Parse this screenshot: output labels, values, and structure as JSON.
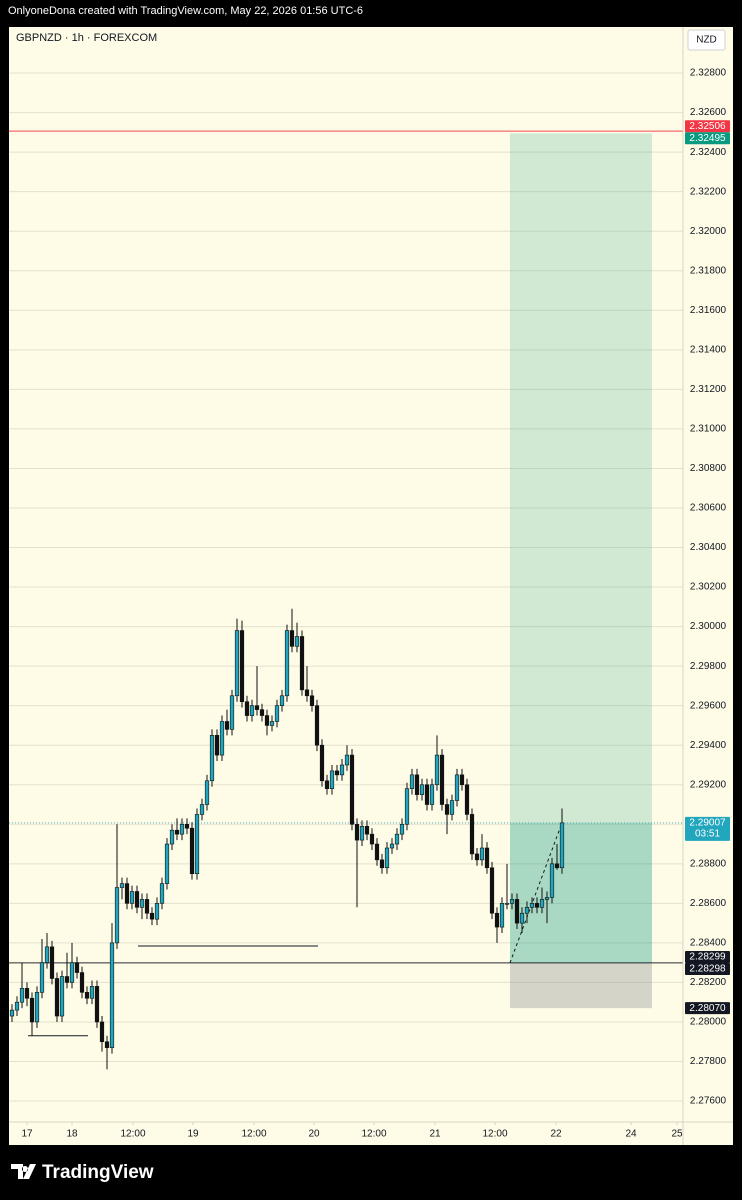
{
  "header": "OnlyoneDona created with TradingView.com, May 22, 2026 01:56 UTC-6",
  "footer": "TradingView",
  "chart_data": {
    "type": "candlestick",
    "title": "GBPNZD · 1h · FOREXCOM",
    "currency": "NZD",
    "up_color": "#22a6bd",
    "down_color": "#111111",
    "grid": true,
    "ylim": [
      2.27494,
      2.33033
    ],
    "xlim": [
      -0.6,
      134.2
    ],
    "yticks": [
      {
        "value": 2.276,
        "label": "2.27600"
      },
      {
        "value": 2.278,
        "label": "2.27800"
      },
      {
        "value": 2.28,
        "label": "2.28000"
      },
      {
        "value": 2.282,
        "label": "2.28200"
      },
      {
        "value": 2.284,
        "label": "2.28400"
      },
      {
        "value": 2.286,
        "label": "2.28600"
      },
      {
        "value": 2.288,
        "label": "2.28800"
      },
      {
        "value": 2.29,
        "label": "2.29000"
      },
      {
        "value": 2.292,
        "label": "2.29200"
      },
      {
        "value": 2.294,
        "label": "2.29400"
      },
      {
        "value": 2.296,
        "label": "2.29600"
      },
      {
        "value": 2.298,
        "label": "2.29800"
      },
      {
        "value": 2.3,
        "label": "2.30000"
      },
      {
        "value": 2.302,
        "label": "2.30200"
      },
      {
        "value": 2.304,
        "label": "2.30400"
      },
      {
        "value": 2.306,
        "label": "2.30600"
      },
      {
        "value": 2.308,
        "label": "2.30800"
      },
      {
        "value": 2.31,
        "label": "2.31000"
      },
      {
        "value": 2.312,
        "label": "2.31200"
      },
      {
        "value": 2.314,
        "label": "2.31400"
      },
      {
        "value": 2.316,
        "label": "2.31600"
      },
      {
        "value": 2.318,
        "label": "2.31800"
      },
      {
        "value": 2.32,
        "label": "2.32000"
      },
      {
        "value": 2.322,
        "label": "2.32200"
      },
      {
        "value": 2.324,
        "label": "2.32400"
      },
      {
        "value": 2.326,
        "label": "2.32600"
      },
      {
        "value": 2.328,
        "label": "2.32800"
      }
    ],
    "xticks": [
      {
        "value": 3,
        "label": "17"
      },
      {
        "value": 12,
        "label": "18"
      },
      {
        "value": 24.2,
        "label": "12:00"
      },
      {
        "value": 36.2,
        "label": "19"
      },
      {
        "value": 48.4,
        "label": "12:00"
      },
      {
        "value": 60.4,
        "label": "20"
      },
      {
        "value": 72.4,
        "label": "12:00"
      },
      {
        "value": 84.6,
        "label": "21"
      },
      {
        "value": 96.6,
        "label": "12:00"
      },
      {
        "value": 108.8,
        "label": "22"
      },
      {
        "value": 123.8,
        "label": "24"
      },
      {
        "value": 133,
        "label": "25"
      }
    ],
    "candles": [
      [
        2.2803,
        2.2809,
        2.28,
        2.2806
      ],
      [
        2.2806,
        2.2813,
        2.2803,
        2.281
      ],
      [
        2.281,
        2.283,
        2.2807,
        2.2817
      ],
      [
        2.2817,
        2.282,
        2.2808,
        2.2812
      ],
      [
        2.2812,
        2.2815,
        2.2793,
        2.28
      ],
      [
        2.28,
        2.2818,
        2.2797,
        2.2815
      ],
      [
        2.2815,
        2.2842,
        2.2812,
        2.283
      ],
      [
        2.283,
        2.2845,
        2.2827,
        2.2838
      ],
      [
        2.2838,
        2.2841,
        2.2819,
        2.2822
      ],
      [
        2.2822,
        2.2825,
        2.28,
        2.2803
      ],
      [
        2.2803,
        2.2826,
        2.28,
        2.2823
      ],
      [
        2.2823,
        2.2835,
        2.2817,
        2.282
      ],
      [
        2.282,
        2.284,
        2.2817,
        2.283
      ],
      [
        2.283,
        2.2833,
        2.2822,
        2.2825
      ],
      [
        2.2825,
        2.2828,
        2.2812,
        2.2815
      ],
      [
        2.2815,
        2.2818,
        2.2809,
        2.2812
      ],
      [
        2.2812,
        2.2821,
        2.2809,
        2.2818
      ],
      [
        2.2818,
        2.2821,
        2.2797,
        2.28
      ],
      [
        2.28,
        2.2803,
        2.2785,
        2.279
      ],
      [
        2.279,
        2.2793,
        2.2776,
        2.2787
      ],
      [
        2.2787,
        2.285,
        2.2784,
        2.284
      ],
      [
        2.284,
        2.29,
        2.2837,
        2.2868
      ],
      [
        2.2868,
        2.2873,
        2.2862,
        2.287
      ],
      [
        2.287,
        2.2873,
        2.2857,
        2.286
      ],
      [
        2.286,
        2.2869,
        2.2857,
        2.2866
      ],
      [
        2.2866,
        2.2869,
        2.2855,
        2.2858
      ],
      [
        2.2858,
        2.2865,
        2.2852,
        2.2862
      ],
      [
        2.2862,
        2.2865,
        2.2852,
        2.2855
      ],
      [
        2.2855,
        2.2858,
        2.2849,
        2.2852
      ],
      [
        2.2852,
        2.2863,
        2.2849,
        2.286
      ],
      [
        2.286,
        2.2873,
        2.2857,
        2.287
      ],
      [
        2.287,
        2.2893,
        2.2867,
        2.289
      ],
      [
        2.289,
        2.29,
        2.2887,
        2.2897
      ],
      [
        2.2897,
        2.2903,
        2.2892,
        2.2895
      ],
      [
        2.2895,
        2.2903,
        2.2892,
        2.29
      ],
      [
        2.29,
        2.2903,
        2.2895,
        2.2898
      ],
      [
        2.2898,
        2.2901,
        2.2872,
        2.2875
      ],
      [
        2.2875,
        2.2908,
        2.2872,
        2.2905
      ],
      [
        2.2905,
        2.2913,
        2.2902,
        2.291
      ],
      [
        2.291,
        2.2925,
        2.2907,
        2.2922
      ],
      [
        2.2922,
        2.2948,
        2.2919,
        2.2945
      ],
      [
        2.2945,
        2.2948,
        2.2932,
        2.2935
      ],
      [
        2.2935,
        2.2955,
        2.2932,
        2.2952
      ],
      [
        2.2952,
        2.2958,
        2.2945,
        2.2948
      ],
      [
        2.2948,
        2.2968,
        2.2945,
        2.2965
      ],
      [
        2.2965,
        2.3004,
        2.2962,
        2.2998
      ],
      [
        2.2998,
        2.3003,
        2.2959,
        2.2962
      ],
      [
        2.2962,
        2.2965,
        2.2952,
        2.2955
      ],
      [
        2.2955,
        2.2963,
        2.2952,
        2.296
      ],
      [
        2.296,
        2.298,
        2.2955,
        2.2958
      ],
      [
        2.2958,
        2.2961,
        2.2952,
        2.2955
      ],
      [
        2.2955,
        2.2958,
        2.2945,
        2.295
      ],
      [
        2.295,
        2.2955,
        2.2947,
        2.2952
      ],
      [
        2.2952,
        2.2963,
        2.2949,
        2.296
      ],
      [
        2.296,
        2.2968,
        2.2957,
        2.2965
      ],
      [
        2.2965,
        2.3001,
        2.2962,
        2.2998
      ],
      [
        2.2998,
        2.3009,
        2.2987,
        2.299
      ],
      [
        2.299,
        2.3002,
        2.2987,
        2.2995
      ],
      [
        2.2995,
        2.2998,
        2.2965,
        2.2968
      ],
      [
        2.2968,
        2.298,
        2.2962,
        2.2965
      ],
      [
        2.2965,
        2.2968,
        2.2957,
        2.296
      ],
      [
        2.296,
        2.2963,
        2.2937,
        2.294
      ],
      [
        2.294,
        2.2943,
        2.2919,
        2.2922
      ],
      [
        2.2922,
        2.2925,
        2.2915,
        2.2918
      ],
      [
        2.2918,
        2.293,
        2.2915,
        2.2927
      ],
      [
        2.2927,
        2.293,
        2.2922,
        2.2925
      ],
      [
        2.2925,
        2.2933,
        2.2922,
        2.293
      ],
      [
        2.293,
        2.294,
        2.2927,
        2.2935
      ],
      [
        2.2935,
        2.2938,
        2.2897,
        2.29
      ],
      [
        2.29,
        2.2903,
        2.2858,
        2.2892
      ],
      [
        2.2892,
        2.2902,
        2.2889,
        2.2899
      ],
      [
        2.2899,
        2.2902,
        2.2892,
        2.2895
      ],
      [
        2.2895,
        2.2898,
        2.2887,
        2.289
      ],
      [
        2.289,
        2.2893,
        2.2879,
        2.2882
      ],
      [
        2.2882,
        2.2885,
        2.2875,
        2.2878
      ],
      [
        2.2878,
        2.2891,
        2.2875,
        2.2888
      ],
      [
        2.2888,
        2.2893,
        2.2885,
        2.289
      ],
      [
        2.289,
        2.2898,
        2.2887,
        2.2895
      ],
      [
        2.2895,
        2.2903,
        2.2892,
        2.29
      ],
      [
        2.29,
        2.2921,
        2.2897,
        2.2918
      ],
      [
        2.2918,
        2.2928,
        2.2915,
        2.2925
      ],
      [
        2.2925,
        2.2928,
        2.2912,
        2.2915
      ],
      [
        2.2915,
        2.2923,
        2.2912,
        2.292
      ],
      [
        2.292,
        2.2923,
        2.2907,
        2.291
      ],
      [
        2.291,
        2.2923,
        2.2907,
        2.292
      ],
      [
        2.292,
        2.2945,
        2.2917,
        2.2935
      ],
      [
        2.2935,
        2.2938,
        2.2907,
        2.291
      ],
      [
        2.291,
        2.2913,
        2.2895,
        2.2905
      ],
      [
        2.2905,
        2.2915,
        2.2902,
        2.2912
      ],
      [
        2.2912,
        2.2928,
        2.2909,
        2.2925
      ],
      [
        2.2925,
        2.2928,
        2.2917,
        2.292
      ],
      [
        2.292,
        2.2923,
        2.2902,
        2.2905
      ],
      [
        2.2905,
        2.2908,
        2.2882,
        2.2885
      ],
      [
        2.2885,
        2.2888,
        2.2879,
        2.2882
      ],
      [
        2.2882,
        2.2895,
        2.2879,
        2.2888
      ],
      [
        2.2888,
        2.2891,
        2.2875,
        2.2878
      ],
      [
        2.2878,
        2.2881,
        2.2852,
        2.2855
      ],
      [
        2.2855,
        2.2858,
        2.284,
        2.2848
      ],
      [
        2.2848,
        2.2863,
        2.2845,
        2.286
      ],
      [
        2.286,
        2.288,
        2.2857,
        2.286
      ],
      [
        2.286,
        2.2865,
        2.2857,
        2.2862
      ],
      [
        2.2862,
        2.2865,
        2.2847,
        2.285
      ],
      [
        2.285,
        2.2858,
        2.2845,
        2.2855
      ],
      [
        2.2855,
        2.2861,
        2.285,
        2.2858
      ],
      [
        2.2858,
        2.2863,
        2.2855,
        2.286
      ],
      [
        2.286,
        2.2863,
        2.2855,
        2.2858
      ],
      [
        2.2858,
        2.2868,
        2.2855,
        2.2862
      ],
      [
        2.2862,
        2.2866,
        2.285,
        2.2863
      ],
      [
        2.2863,
        2.2883,
        2.286,
        2.288
      ],
      [
        2.288,
        2.289,
        2.2877,
        2.2878
      ],
      [
        2.2878,
        2.2908,
        2.2875,
        2.29007
      ]
    ],
    "position": {
      "start": 99.6,
      "end": 128,
      "entry": 2.28299,
      "target": 2.32495,
      "stop": 2.2807
    },
    "drawings": [
      {
        "x": [
          25.2,
          61.2
        ],
        "y": [
          2.28384,
          2.28384
        ],
        "style": "solid"
      },
      {
        "x": [
          3.2,
          15.2
        ],
        "y": [
          2.2793,
          2.2793
        ],
        "style": "solid"
      },
      {
        "x": [
          99.6,
          110
        ],
        "y": [
          2.28299,
          2.29007
        ],
        "style": "dashed"
      }
    ],
    "price_labels": [
      {
        "value": 2.32506,
        "label": "2.32506",
        "color": "#f23645",
        "line": "solid"
      },
      {
        "value": 2.32495,
        "label": "2.32495",
        "color": "#089981"
      },
      {
        "value": 2.29007,
        "label": "2.29007",
        "color": "#22a6bd",
        "line": "dotted",
        "countdown": "03:51"
      },
      {
        "value": 2.28299,
        "label": "2.28299",
        "color": "#131722",
        "line": "solid"
      },
      {
        "value": 2.28298,
        "label": "2.28298",
        "color": "#131722"
      },
      {
        "value": 2.2807,
        "label": "2.28070",
        "color": "#131722"
      }
    ]
  }
}
